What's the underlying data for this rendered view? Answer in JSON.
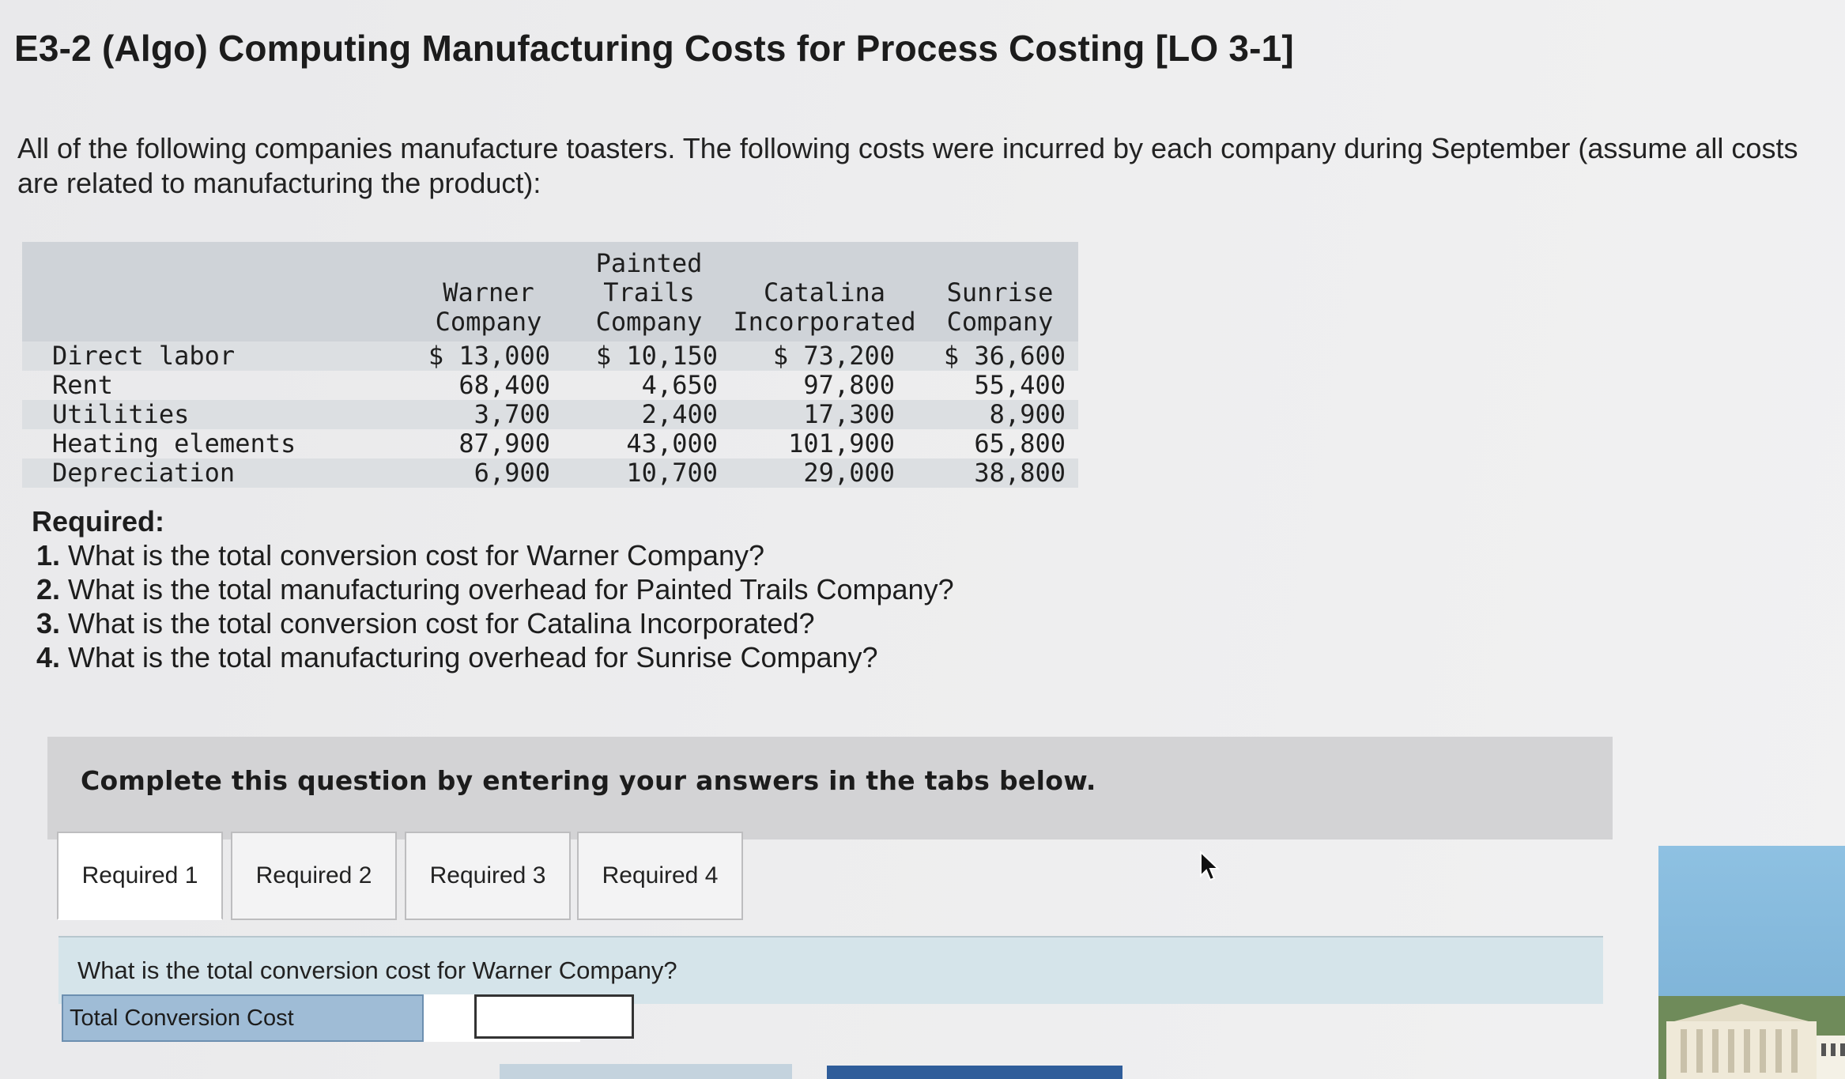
{
  "title": "E3-2 (Algo) Computing Manufacturing Costs for Process Costing [LO 3-1]",
  "intro": "All of the following companies manufacture toasters. The following costs were incurred by each company during September (assume all costs are related to manufacturing the product):",
  "table": {
    "columns": [
      "Warner\nCompany",
      "Painted\nTrails\nCompany",
      "Catalina\nIncorporated",
      "Sunrise\nCompany"
    ],
    "rows": [
      {
        "label": "Direct labor",
        "values": [
          "$ 13,000",
          "$ 10,150",
          "$ 73,200",
          "$ 36,600"
        ]
      },
      {
        "label": "Rent",
        "values": [
          "68,400",
          "4,650",
          "97,800",
          "55,400"
        ]
      },
      {
        "label": "Utilities",
        "values": [
          "3,700",
          "2,400",
          "17,300",
          "8,900"
        ]
      },
      {
        "label": "Heating elements",
        "values": [
          "87,900",
          "43,000",
          "101,900",
          "65,800"
        ]
      },
      {
        "label": "Depreciation",
        "values": [
          "6,900",
          "10,700",
          "29,000",
          "38,800"
        ]
      }
    ]
  },
  "required": {
    "heading": "Required:",
    "items": [
      "What is the total conversion cost for Warner Company?",
      "What is the total manufacturing overhead for Painted Trails Company?",
      "What is the total conversion cost for Catalina Incorporated?",
      "What is the total manufacturing overhead for Sunrise Company?"
    ]
  },
  "instruction": "Complete this question by entering your answers in the tabs below.",
  "tabs": [
    "Required 1",
    "Required 2",
    "Required 3",
    "Required 4"
  ],
  "active_tab": "Required 1",
  "question": "What is the total conversion cost for Warner Company?",
  "answer": {
    "label": "Total Conversion Cost",
    "value": ""
  },
  "icons": {
    "cursor": "pointer-arrow-icon"
  },
  "colors": {
    "table_header": "#cfd3d8",
    "question_bar": "#d5e4ea",
    "answer_label": "#9fbcd6",
    "next_button": "#2f5d9a"
  }
}
